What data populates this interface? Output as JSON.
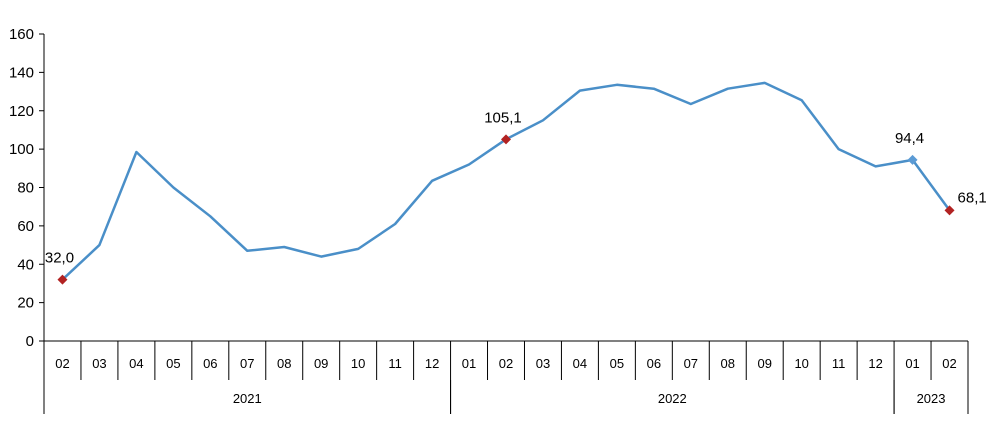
{
  "chart_data": {
    "type": "line",
    "title": "",
    "xlabel": "",
    "ylabel": "",
    "ylim": [
      0,
      160
    ],
    "yticks": [
      0,
      20,
      40,
      60,
      80,
      100,
      120,
      140,
      160
    ],
    "grid": false,
    "legend": "none",
    "x": [
      "02",
      "03",
      "04",
      "05",
      "06",
      "07",
      "08",
      "09",
      "10",
      "11",
      "12",
      "01",
      "02",
      "03",
      "04",
      "05",
      "06",
      "07",
      "08",
      "09",
      "10",
      "11",
      "12",
      "01",
      "02"
    ],
    "years": [
      {
        "label": "2021",
        "start": 0,
        "end": 10
      },
      {
        "label": "2022",
        "start": 11,
        "end": 22
      },
      {
        "label": "2023",
        "start": 23,
        "end": 24
      }
    ],
    "series": [
      {
        "values": [
          32.0,
          50.0,
          98.5,
          80.0,
          65.0,
          47.0,
          49.0,
          44.0,
          48.0,
          61.0,
          83.5,
          92.0,
          105.1,
          115.0,
          130.5,
          133.5,
          131.5,
          123.5,
          131.5,
          134.5,
          125.5,
          100.0,
          91.0,
          94.4,
          68.1
        ],
        "color": "#4a8fc8"
      }
    ],
    "annotations": [
      {
        "index": 0,
        "text": "32,0",
        "marker_color": "#b22222"
      },
      {
        "index": 12,
        "text": "105,1",
        "marker_color": "#b22222"
      },
      {
        "index": 23,
        "text": "94,4",
        "marker_color": "#5b9bd5"
      },
      {
        "index": 24,
        "text": "68,1",
        "marker_color": "#b22222"
      }
    ]
  }
}
